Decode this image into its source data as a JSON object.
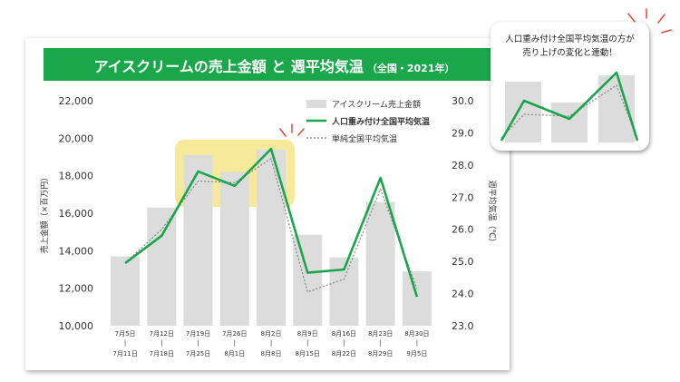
{
  "banner": {
    "title": "アイスクリームの売上金額 と 週平均気温",
    "subtitle": "（全国・2021年）"
  },
  "callout": {
    "line1": "人口重み付け全国平均気温の方が",
    "line2": "売り上げの変化と連動！"
  },
  "colors": {
    "banner": "#1aa64a",
    "bars": "#dcdcdc",
    "weighted_line": "#1aa64a",
    "simple_line": "#888888",
    "highlight": "#f7e99a",
    "burst": "#e04a3a"
  },
  "chart_data": {
    "type": "bar",
    "categories": [
      [
        "7月5日",
        "7月11日"
      ],
      [
        "7月12日",
        "7月18日"
      ],
      [
        "7月19日",
        "7月25日"
      ],
      [
        "7月26日",
        "8月1日"
      ],
      [
        "8月2日",
        "8月8日"
      ],
      [
        "8月9日",
        "8月15日"
      ],
      [
        "8月16日",
        "8月22日"
      ],
      [
        "8月23日",
        "8月29日"
      ],
      [
        "8月30日",
        "9月5日"
      ]
    ],
    "ylabel": "売上金額（×百万円）",
    "y2label": "週平均気温（℃）",
    "ylim": [
      10000,
      22000
    ],
    "y2lim": [
      23.0,
      30.0
    ],
    "yticks": [
      "22,000",
      "20,000",
      "18,000",
      "16,000",
      "14,000",
      "12,000",
      "10,000"
    ],
    "y2ticks": [
      "30.0",
      "29.0",
      "28.0",
      "27.0",
      "26.0",
      "25.0",
      "24.0",
      "23.0"
    ],
    "series": [
      {
        "name": "アイスクリーム売上金額",
        "kind": "bar",
        "axis": "left",
        "values": [
          13700,
          16300,
          19100,
          18200,
          19400,
          14850,
          13650,
          16600,
          12900
        ]
      },
      {
        "name": "人口重み付け全国平均気温",
        "kind": "line",
        "axis": "right",
        "values": [
          24.95,
          25.8,
          27.8,
          27.35,
          28.5,
          24.65,
          24.75,
          27.6,
          23.9
        ]
      },
      {
        "name": "単純全国平均気温",
        "kind": "dotted",
        "axis": "right",
        "values": [
          24.95,
          26.0,
          27.5,
          27.45,
          28.2,
          24.05,
          24.45,
          27.25,
          24.15
        ]
      }
    ],
    "highlight_range": [
      "7月19日",
      "8月8日"
    ],
    "legend_position": "top-right"
  }
}
